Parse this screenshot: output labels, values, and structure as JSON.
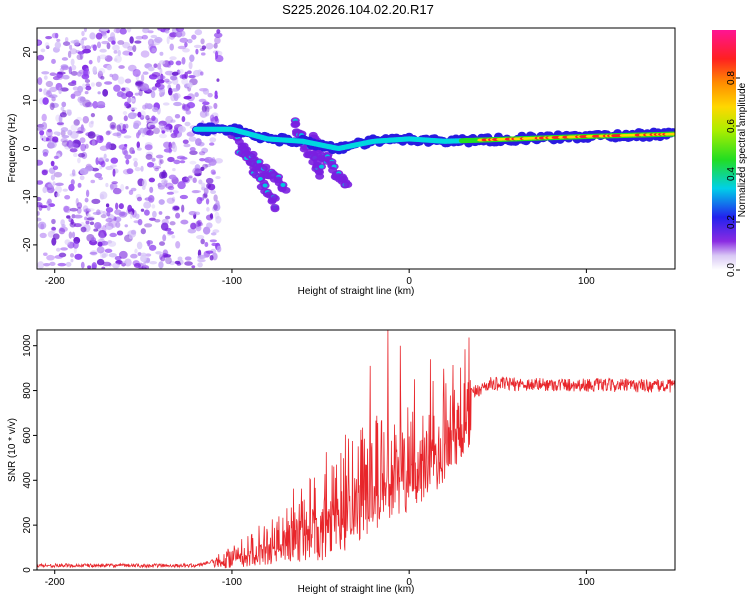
{
  "title": "S225.2026.104.02.20.R17",
  "colors": {
    "snr_line": "#e8262b",
    "blob_purple": "#7a1fe0",
    "background": "#ffffff"
  },
  "chart_data": [
    {
      "type": "heatmap",
      "name": "spectrogram",
      "xlabel": "Height of straight line (km)",
      "ylabel": "Frequency (Hz)",
      "xlim": [
        -210,
        150
      ],
      "ylim": [
        -25,
        25
      ],
      "xticks": [
        -200,
        -100,
        0,
        100
      ],
      "xtick_labels": [
        "-200",
        "-100",
        "0",
        "100"
      ],
      "yticks": [
        -20,
        -10,
        0,
        10,
        20
      ],
      "ytick_labels": [
        "-20",
        "-10",
        "0",
        "10",
        "20"
      ],
      "colorbar": {
        "label": "Normalized spectral amplitude",
        "range": [
          0,
          1
        ],
        "ticks": [
          0.0,
          0.2,
          0.4,
          0.6,
          0.8
        ],
        "tick_labels": [
          "0.0",
          "0.2",
          "0.4",
          "0.6",
          "0.8"
        ],
        "colormap": "rainbow (white-violet-blue-cyan-green-yellow-red-magenta)"
      },
      "features": {
        "noise_region_km": [
          -210,
          -115
        ],
        "tone_ridge": [
          {
            "x": -120,
            "y": 4
          },
          {
            "x": -100,
            "y": 4
          },
          {
            "x": -80,
            "y": 2
          },
          {
            "x": -60,
            "y": 1.5
          },
          {
            "x": -40,
            "y": 0
          },
          {
            "x": -20,
            "y": 1.5
          },
          {
            "x": 0,
            "y": 2
          },
          {
            "x": 20,
            "y": 1.5
          },
          {
            "x": 60,
            "y": 2
          },
          {
            "x": 100,
            "y": 2.5
          },
          {
            "x": 150,
            "y": 3
          }
        ],
        "descending_branches": [
          [
            {
              "x": -100,
              "y": 4
            },
            {
              "x": -75,
              "y": -12
            }
          ],
          [
            {
              "x": -95,
              "y": 0
            },
            {
              "x": -70,
              "y": -8
            }
          ],
          [
            {
              "x": -65,
              "y": 5
            },
            {
              "x": -50,
              "y": -5
            }
          ],
          [
            {
              "x": -55,
              "y": 2
            },
            {
              "x": -35,
              "y": -8
            }
          ]
        ]
      }
    },
    {
      "type": "line",
      "name": "snr",
      "xlabel": "Height of straight line (km)",
      "ylabel": "SNR (10 * v/v)",
      "xlim": [
        -210,
        150
      ],
      "ylim": [
        0,
        1070
      ],
      "xticks": [
        -200,
        -100,
        0,
        100
      ],
      "xtick_labels": [
        "-200",
        "-100",
        "0",
        "100"
      ],
      "yticks": [
        0,
        200,
        400,
        600,
        800,
        1000
      ],
      "ytick_labels": [
        "0",
        "200",
        "400",
        "600",
        "800",
        "1000"
      ],
      "series": [
        {
          "name": "SNR",
          "envelope": [
            {
              "x": -210,
              "y": 20
            },
            {
              "x": -120,
              "y": 20
            },
            {
              "x": -100,
              "y": 60
            },
            {
              "x": -80,
              "y": 130
            },
            {
              "x": -60,
              "y": 220
            },
            {
              "x": -40,
              "y": 320
            },
            {
              "x": -20,
              "y": 440
            },
            {
              "x": 0,
              "y": 520
            },
            {
              "x": 15,
              "y": 600
            },
            {
              "x": 30,
              "y": 760
            },
            {
              "x": 45,
              "y": 830
            },
            {
              "x": 150,
              "y": 820
            }
          ],
          "peaks": [
            {
              "x": -12,
              "y": 1070
            },
            {
              "x": -22,
              "y": 910
            },
            {
              "x": 12,
              "y": 940
            },
            {
              "x": -5,
              "y": 1000
            },
            {
              "x": 3,
              "y": 850
            }
          ]
        }
      ]
    }
  ]
}
